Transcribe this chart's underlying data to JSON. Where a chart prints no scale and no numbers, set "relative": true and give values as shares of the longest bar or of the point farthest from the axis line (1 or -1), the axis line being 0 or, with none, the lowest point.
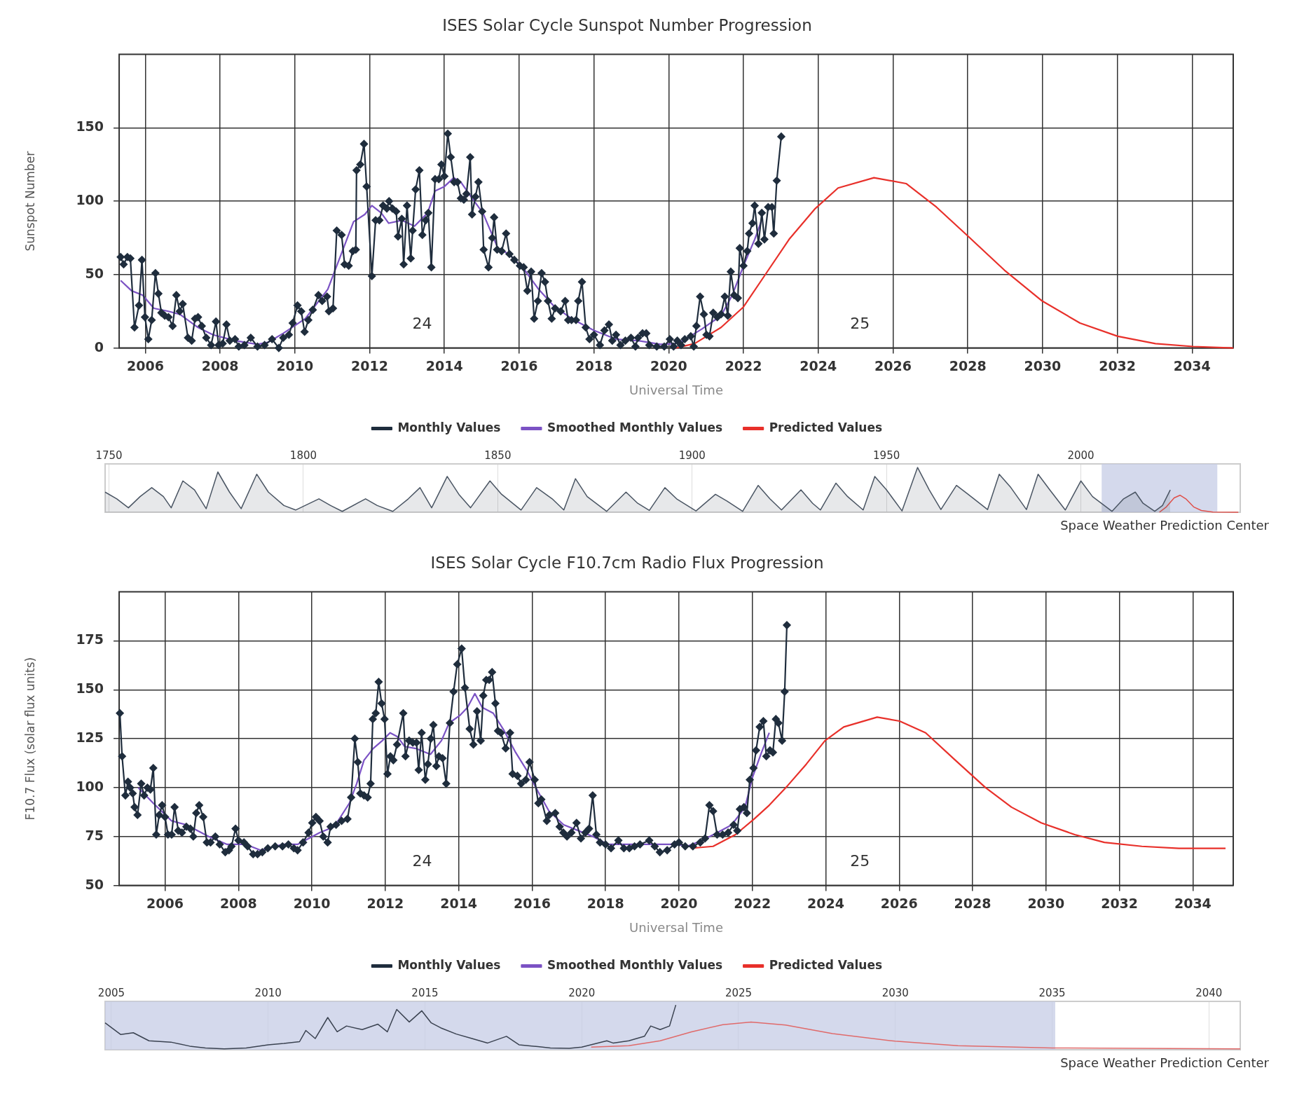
{
  "chart_data": [
    {
      "type": "line",
      "title": "ISES Solar Cycle Sunspot Number Progression",
      "xlabel": "Universal Time",
      "ylabel": "Sunspot Number",
      "xlim": [
        2005.3,
        2035.1
      ],
      "xticks": [
        2006,
        2008,
        2010,
        2012,
        2014,
        2016,
        2018,
        2020,
        2022,
        2024,
        2026,
        2028,
        2030,
        2032,
        2034
      ],
      "ylim": [
        0,
        200
      ],
      "yticks": [
        0,
        50,
        100,
        150
      ],
      "grid": true,
      "legend": "bottom",
      "series": [
        {
          "name": "Monthly Values",
          "color": "#1f2d3d",
          "marker": "diamond",
          "x": [
            2005.34,
            2005.42,
            2005.52,
            2005.6,
            2005.71,
            2005.83,
            2005.91,
            2005.99,
            2006.08,
            2006.17,
            2006.27,
            2006.35,
            2006.43,
            2006.52,
            2006.62,
            2006.73,
            2006.83,
            2006.92,
            2007.0,
            2007.14,
            2007.24,
            2007.33,
            2007.41,
            2007.51,
            2007.63,
            2007.76,
            2007.89,
            2007.96,
            2008.07,
            2008.17,
            2008.26,
            2008.4,
            2008.5,
            2008.65,
            2008.82,
            2009.0,
            2009.19,
            2009.39,
            2009.57,
            2009.69,
            2009.84,
            2009.94,
            2010.07,
            2010.17,
            2010.26,
            2010.36,
            2010.48,
            2010.63,
            2010.73,
            2010.86,
            2010.91,
            2011.02,
            2011.12,
            2011.25,
            2011.33,
            2011.44,
            2011.55,
            2011.63,
            2011.65,
            2011.75,
            2011.85,
            2011.92,
            2012.06,
            2012.16,
            2012.26,
            2012.36,
            2012.46,
            2012.52,
            2012.61,
            2012.71,
            2012.76,
            2012.86,
            2012.91,
            2013.0,
            2013.1,
            2013.15,
            2013.23,
            2013.33,
            2013.41,
            2013.5,
            2013.57,
            2013.65,
            2013.75,
            2013.85,
            2013.92,
            2014.0,
            2014.09,
            2014.17,
            2014.26,
            2014.35,
            2014.44,
            2014.52,
            2014.59,
            2014.69,
            2014.74,
            2014.83,
            2014.91,
            2015.01,
            2015.05,
            2015.18,
            2015.28,
            2015.33,
            2015.41,
            2015.53,
            2015.65,
            2015.74,
            2015.87,
            2016.02,
            2016.12,
            2016.22,
            2016.32,
            2016.4,
            2016.5,
            2016.6,
            2016.69,
            2016.77,
            2016.87,
            2016.96,
            2017.11,
            2017.23,
            2017.31,
            2017.4,
            2017.52,
            2017.58,
            2017.68,
            2017.78,
            2017.88,
            2018.0,
            2018.16,
            2018.28,
            2018.4,
            2018.49,
            2018.59,
            2018.71,
            2018.84,
            2018.99,
            2019.11,
            2019.18,
            2019.3,
            2019.4,
            2019.48,
            2019.68,
            2019.88,
            2020.03,
            2020.13,
            2020.23,
            2020.33,
            2020.43,
            2020.59,
            2020.67,
            2020.74,
            2020.84,
            2020.94,
            2021.01,
            2021.09,
            2021.19,
            2021.3,
            2021.4,
            2021.5,
            2021.58,
            2021.66,
            2021.75,
            2021.85,
            2021.9,
            2022.0,
            2022.1,
            2022.15,
            2022.24,
            2022.3,
            2022.4,
            2022.49,
            2022.56,
            2022.66,
            2022.76,
            2022.81,
            2022.89,
            2023.01
          ],
          "values": [
            62,
            57,
            62,
            61,
            14,
            29,
            60,
            21,
            6,
            19,
            51,
            37,
            24,
            22,
            21,
            15,
            36,
            25,
            30,
            7,
            5,
            20,
            21,
            15,
            7,
            2,
            18,
            2,
            3,
            16,
            5,
            6,
            1,
            2,
            7,
            1,
            2,
            6,
            0,
            7,
            9,
            17,
            29,
            25,
            11,
            19,
            26,
            36,
            32,
            35,
            25,
            27,
            80,
            77,
            57,
            56,
            66,
            67,
            121,
            125,
            139,
            110,
            49,
            87,
            87,
            97,
            95,
            100,
            95,
            93,
            76,
            88,
            57,
            97,
            61,
            80,
            108,
            121,
            77,
            87,
            92,
            55,
            115,
            115,
            125,
            117,
            146,
            130,
            113,
            113,
            102,
            101,
            105,
            130,
            91,
            103,
            113,
            93,
            67,
            55,
            75,
            89,
            67,
            66,
            78,
            64,
            60,
            56,
            55,
            39,
            52,
            20,
            32,
            51,
            45,
            32,
            20,
            27,
            25,
            32,
            19,
            19,
            19,
            32,
            45,
            14,
            6,
            9,
            2,
            12,
            16,
            5,
            9,
            2,
            5,
            7,
            1,
            7,
            10,
            10,
            2,
            1,
            1,
            6,
            1,
            5,
            2,
            6,
            8,
            1,
            15,
            35,
            23,
            9,
            8,
            24,
            21,
            23,
            35,
            22,
            52,
            36,
            34,
            68,
            56,
            66,
            78,
            85,
            97,
            71,
            92,
            74,
            96,
            96,
            78,
            114,
            144
          ]
        },
        {
          "name": "Smoothed Monthly Values",
          "color": "#7b52c4",
          "marker": "none",
          "x": [
            2005.34,
            2005.63,
            2005.93,
            2006.23,
            2006.62,
            2006.92,
            2007.41,
            2007.81,
            2008.4,
            2009.0,
            2009.29,
            2009.69,
            2010.28,
            2010.88,
            2011.27,
            2011.57,
            2011.87,
            2012.06,
            2012.31,
            2012.51,
            2012.86,
            2013.2,
            2013.55,
            2013.75,
            2014.0,
            2014.25,
            2014.44,
            2014.74,
            2015.03,
            2015.43,
            2015.72,
            2016.12,
            2016.52,
            2016.91,
            2017.4,
            2018.0,
            2018.59,
            2019.18,
            2019.78,
            2020.17,
            2020.38,
            2020.89,
            2021.4,
            2021.7,
            2022.0,
            2022.3,
            2022.5
          ],
          "values": [
            46,
            39,
            36,
            27,
            25,
            23,
            14,
            9,
            5,
            2.5,
            4,
            10,
            20,
            40,
            66,
            86,
            91,
            97,
            92,
            85,
            87,
            83,
            92,
            107,
            110,
            116,
            113,
            102,
            92,
            68,
            64,
            54,
            40,
            29,
            20,
            12,
            6,
            5,
            2.5,
            3,
            5,
            13,
            22,
            36,
            56,
            74,
            88
          ]
        },
        {
          "name": "Predicted Values",
          "color": "#e8302a",
          "marker": "none",
          "x": [
            2020.18,
            2020.69,
            2021.4,
            2022.0,
            2022.61,
            2023.22,
            2023.92,
            2024.53,
            2025.49,
            2026.35,
            2027.16,
            2027.97,
            2028.98,
            2029.99,
            2031.0,
            2032.01,
            2033.02,
            2034.03,
            2035.1
          ],
          "values": [
            0,
            3,
            14,
            28,
            51,
            74,
            95,
            109,
            116,
            112,
            96,
            77,
            53,
            32,
            17,
            8,
            3,
            1,
            0
          ]
        }
      ],
      "annotations": [
        "24",
        "25"
      ]
    },
    {
      "type": "line",
      "relative": true,
      "xlim": [
        1749,
        2041
      ],
      "xticks": [
        1750,
        1800,
        1850,
        1900,
        1950,
        2000
      ],
      "tick_labels": "x",
      "grid": "x",
      "bands": [
        {
          "axis": "x",
          "from": 2005.35,
          "to": 2035.1,
          "color": "#c5cce6"
        }
      ],
      "series": [
        {
          "type": "area",
          "color": "#4a5563",
          "x": [
            1749,
            1752,
            1755,
            1758,
            1761,
            1764,
            1766,
            1769,
            1772,
            1775,
            1778,
            1781,
            1784,
            1788,
            1791,
            1795,
            1798,
            1804,
            1807,
            1810,
            1816,
            1819,
            1823,
            1827,
            1830,
            1833,
            1837,
            1840,
            1843,
            1848,
            1851,
            1856,
            1860,
            1864,
            1867,
            1870,
            1873,
            1878,
            1883,
            1886,
            1889,
            1893,
            1896,
            1901,
            1906,
            1909,
            1913,
            1917,
            1920,
            1923,
            1928,
            1931,
            1933,
            1937,
            1940,
            1944,
            1947,
            1950,
            1954,
            1958,
            1961,
            1964,
            1968,
            1971,
            1976,
            1979,
            1982,
            1986,
            1989,
            1992,
            1996,
            2000,
            2003,
            2008,
            2011,
            2014,
            2016,
            2019,
            2021,
            2023
          ],
          "values": [
            0.45,
            0.3,
            0.1,
            0.35,
            0.55,
            0.35,
            0.1,
            0.7,
            0.5,
            0.08,
            0.9,
            0.45,
            0.08,
            0.85,
            0.45,
            0.15,
            0.05,
            0.3,
            0.15,
            0.02,
            0.3,
            0.15,
            0.02,
            0.3,
            0.55,
            0.1,
            0.8,
            0.4,
            0.1,
            0.7,
            0.4,
            0.05,
            0.55,
            0.3,
            0.05,
            0.75,
            0.35,
            0.02,
            0.45,
            0.2,
            0.04,
            0.55,
            0.3,
            0.03,
            0.4,
            0.25,
            0.02,
            0.6,
            0.3,
            0.05,
            0.5,
            0.2,
            0.05,
            0.65,
            0.35,
            0.05,
            0.8,
            0.5,
            0.03,
            1.0,
            0.5,
            0.06,
            0.6,
            0.4,
            0.06,
            0.85,
            0.55,
            0.06,
            0.85,
            0.5,
            0.05,
            0.7,
            0.35,
            0.02,
            0.3,
            0.45,
            0.2,
            0.02,
            0.15,
            0.5
          ]
        },
        {
          "type": "line",
          "color": "#e0504a",
          "x": [
            2020.2,
            2022,
            2024,
            2025.5,
            2027,
            2029,
            2031,
            2034,
            2040.5
          ],
          "values": [
            0,
            0.12,
            0.32,
            0.38,
            0.3,
            0.12,
            0.04,
            0.005,
            0
          ]
        }
      ],
      "annotations": [
        "Space Weather Prediction Center"
      ]
    },
    {
      "type": "line",
      "title": "ISES Solar Cycle F10.7cm Radio Flux Progression",
      "xlabel": "Universal Time",
      "ylabel": "F10.7 Flux (solar flux units)",
      "xlim": [
        2004.75,
        2035.1
      ],
      "xticks": [
        2006,
        2008,
        2010,
        2012,
        2014,
        2016,
        2018,
        2020,
        2022,
        2024,
        2026,
        2028,
        2030,
        2032,
        2034
      ],
      "ylim": [
        50,
        200
      ],
      "yticks": [
        50,
        75,
        100,
        125,
        150,
        175
      ],
      "grid": true,
      "legend": "bottom",
      "series": [
        {
          "name": "Monthly Values",
          "color": "#1f2d3d",
          "marker": "diamond",
          "x": [
            2004.77,
            2004.83,
            2004.92,
            2004.99,
            2005.05,
            2005.12,
            2005.17,
            2005.25,
            2005.35,
            2005.43,
            2005.52,
            2005.6,
            2005.68,
            2005.76,
            2005.84,
            2005.92,
            2006.0,
            2006.08,
            2006.18,
            2006.26,
            2006.36,
            2006.46,
            2006.58,
            2006.69,
            2006.77,
            2006.85,
            2006.93,
            2007.04,
            2007.14,
            2007.24,
            2007.37,
            2007.49,
            2007.64,
            2007.74,
            2007.81,
            2007.92,
            2008.0,
            2008.15,
            2008.25,
            2008.4,
            2008.52,
            2008.65,
            2008.8,
            2009.0,
            2009.2,
            2009.36,
            2009.51,
            2009.61,
            2009.76,
            2009.91,
            2010.01,
            2010.11,
            2010.21,
            2010.31,
            2010.43,
            2010.51,
            2010.66,
            2010.81,
            2010.97,
            2011.07,
            2011.17,
            2011.25,
            2011.32,
            2011.42,
            2011.52,
            2011.6,
            2011.66,
            2011.74,
            2011.82,
            2011.9,
            2011.98,
            2012.06,
            2012.14,
            2012.22,
            2012.32,
            2012.49,
            2012.55,
            2012.65,
            2012.75,
            2012.85,
            2012.91,
            2012.99,
            2013.09,
            2013.16,
            2013.24,
            2013.31,
            2013.39,
            2013.46,
            2013.56,
            2013.66,
            2013.76,
            2013.86,
            2013.96,
            2014.08,
            2014.17,
            2014.3,
            2014.4,
            2014.5,
            2014.6,
            2014.67,
            2014.75,
            2014.83,
            2014.91,
            2015.0,
            2015.07,
            2015.15,
            2015.28,
            2015.4,
            2015.47,
            2015.6,
            2015.7,
            2015.83,
            2015.93,
            2016.07,
            2016.17,
            2016.25,
            2016.4,
            2016.47,
            2016.63,
            2016.75,
            2016.85,
            2016.95,
            2017.07,
            2017.21,
            2017.33,
            2017.45,
            2017.55,
            2017.65,
            2017.75,
            2017.85,
            2018.0,
            2018.15,
            2018.35,
            2018.5,
            2018.65,
            2018.79,
            2018.94,
            2019.19,
            2019.34,
            2019.48,
            2019.68,
            2019.88,
            2020.0,
            2020.17,
            2020.38,
            2020.58,
            2020.71,
            2020.83,
            2020.93,
            2021.04,
            2021.19,
            2021.34,
            2021.49,
            2021.59,
            2021.66,
            2021.77,
            2021.85,
            2021.93,
            2022.03,
            2022.1,
            2022.2,
            2022.3,
            2022.38,
            2022.48,
            2022.56,
            2022.64,
            2022.71,
            2022.81,
            2022.88,
            2022.94
          ],
          "values": [
            138,
            116,
            96,
            103,
            100,
            97,
            90,
            86,
            102,
            96,
            100,
            99,
            110,
            76,
            86,
            91,
            85,
            76,
            76,
            90,
            78,
            77,
            80,
            79,
            75,
            87,
            91,
            85,
            72,
            72,
            75,
            71,
            67,
            68,
            70,
            79,
            73,
            72,
            70,
            66,
            66,
            67,
            69,
            70,
            70,
            71,
            69,
            68,
            72,
            77,
            82,
            85,
            83,
            75,
            72,
            80,
            81,
            83,
            84,
            95,
            125,
            113,
            97,
            96,
            95,
            102,
            135,
            138,
            154,
            143,
            135,
            107,
            116,
            114,
            122,
            138,
            116,
            124,
            123,
            123,
            109,
            128,
            104,
            112,
            125,
            132,
            111,
            116,
            115,
            102,
            133,
            149,
            163,
            171,
            151,
            130,
            122,
            139,
            124,
            147,
            155,
            155,
            159,
            143,
            129,
            128,
            120,
            128,
            107,
            106,
            102,
            104,
            113,
            104,
            92,
            94,
            83,
            86,
            87,
            80,
            77,
            75,
            77,
            82,
            74,
            77,
            79,
            96,
            76,
            72,
            71,
            69,
            73,
            69,
            69,
            70,
            71,
            73,
            70,
            67,
            68,
            71,
            72,
            70,
            70,
            72,
            74,
            91,
            88,
            76,
            76,
            77,
            81,
            78,
            89,
            90,
            87,
            104,
            110,
            119,
            131,
            134,
            116,
            119,
            118,
            135,
            133,
            124,
            149,
            183
          ]
        },
        {
          "name": "Smoothed Monthly Values",
          "color": "#7b52c4",
          "marker": "none",
          "x": [
            2005.27,
            2005.68,
            2006.18,
            2006.58,
            2007.19,
            2007.69,
            2008.2,
            2008.6,
            2009.2,
            2009.61,
            2010.21,
            2010.61,
            2011.02,
            2011.22,
            2011.42,
            2011.67,
            2011.92,
            2012.13,
            2012.33,
            2012.53,
            2012.83,
            2013.23,
            2013.53,
            2013.74,
            2014.04,
            2014.24,
            2014.44,
            2014.64,
            2014.94,
            2015.24,
            2015.55,
            2015.85,
            2016.16,
            2016.46,
            2016.86,
            2017.26,
            2017.66,
            2018.06,
            2018.46,
            2018.97,
            2019.48,
            2019.94,
            2020.22,
            2020.63,
            2021.04,
            2021.44,
            2021.8,
            2022.0,
            2022.25,
            2022.46
          ],
          "values": [
            100,
            92,
            83,
            81,
            75,
            71,
            71,
            68,
            71,
            71,
            77,
            80,
            92,
            102,
            114,
            120,
            124,
            128,
            126,
            121,
            120,
            117,
            124,
            133,
            137,
            141,
            148,
            141,
            138,
            129,
            118,
            109,
            98,
            88,
            81,
            78,
            75,
            71,
            71,
            71,
            71,
            71,
            70,
            73,
            77,
            81,
            90,
            105,
            118,
            128
          ]
        },
        {
          "name": "Predicted Values",
          "color": "#e8302a",
          "marker": "none",
          "x": [
            2020.32,
            2020.93,
            2021.54,
            2022.05,
            2022.46,
            2022.96,
            2023.47,
            2023.98,
            2024.49,
            2025.4,
            2026.01,
            2026.72,
            2027.53,
            2028.35,
            2029.06,
            2029.87,
            2030.78,
            2031.59,
            2032.61,
            2033.62,
            2034.89
          ],
          "values": [
            69,
            70,
            76,
            84,
            91,
            101,
            112,
            124,
            131,
            136,
            134,
            128,
            114,
            100,
            90,
            82,
            76,
            72,
            70,
            69,
            69
          ]
        }
      ],
      "annotations": [
        "24",
        "25"
      ]
    },
    {
      "type": "line",
      "relative": true,
      "xlim": [
        2004.8,
        2041
      ],
      "xticks": [
        2005,
        2010,
        2015,
        2020,
        2025,
        2030,
        2035,
        2040
      ],
      "tick_labels": "x",
      "grid": "x",
      "bands": [
        {
          "axis": "x",
          "from": 2004.8,
          "to": 2035.1,
          "color": "#c5cce6"
        }
      ],
      "series": [
        {
          "type": "line",
          "color": "#3a4250",
          "x": [
            2004.8,
            2005.3,
            2005.7,
            2006.2,
            2006.9,
            2007.5,
            2008,
            2008.6,
            2009.3,
            2010,
            2010.5,
            2011,
            2011.2,
            2011.5,
            2011.9,
            2012.2,
            2012.5,
            2013,
            2013.5,
            2013.8,
            2014.1,
            2014.5,
            2014.9,
            2015.2,
            2015.5,
            2016,
            2016.5,
            2017,
            2017.6,
            2018,
            2018.6,
            2019,
            2019.6,
            2020,
            2020.8,
            2021,
            2021.5,
            2022,
            2022.2,
            2022.5,
            2022.8,
            2023
          ],
          "values": [
            0.6,
            0.34,
            0.38,
            0.2,
            0.17,
            0.08,
            0.04,
            0.02,
            0.04,
            0.11,
            0.14,
            0.18,
            0.43,
            0.25,
            0.72,
            0.4,
            0.53,
            0.45,
            0.57,
            0.4,
            0.9,
            0.62,
            0.87,
            0.6,
            0.49,
            0.35,
            0.25,
            0.15,
            0.3,
            0.11,
            0.07,
            0.04,
            0.03,
            0.06,
            0.2,
            0.15,
            0.2,
            0.3,
            0.53,
            0.45,
            0.53,
            1.0
          ]
        },
        {
          "type": "line",
          "color": "#e06a6a",
          "x": [
            2020.3,
            2021.5,
            2022.5,
            2023.5,
            2024.5,
            2025.4,
            2026.5,
            2028,
            2030,
            2032,
            2035,
            2041
          ],
          "values": [
            0.06,
            0.09,
            0.2,
            0.4,
            0.56,
            0.62,
            0.55,
            0.36,
            0.19,
            0.09,
            0.04,
            0.02
          ]
        }
      ],
      "annotations": [
        "Space Weather Prediction Center"
      ]
    }
  ]
}
